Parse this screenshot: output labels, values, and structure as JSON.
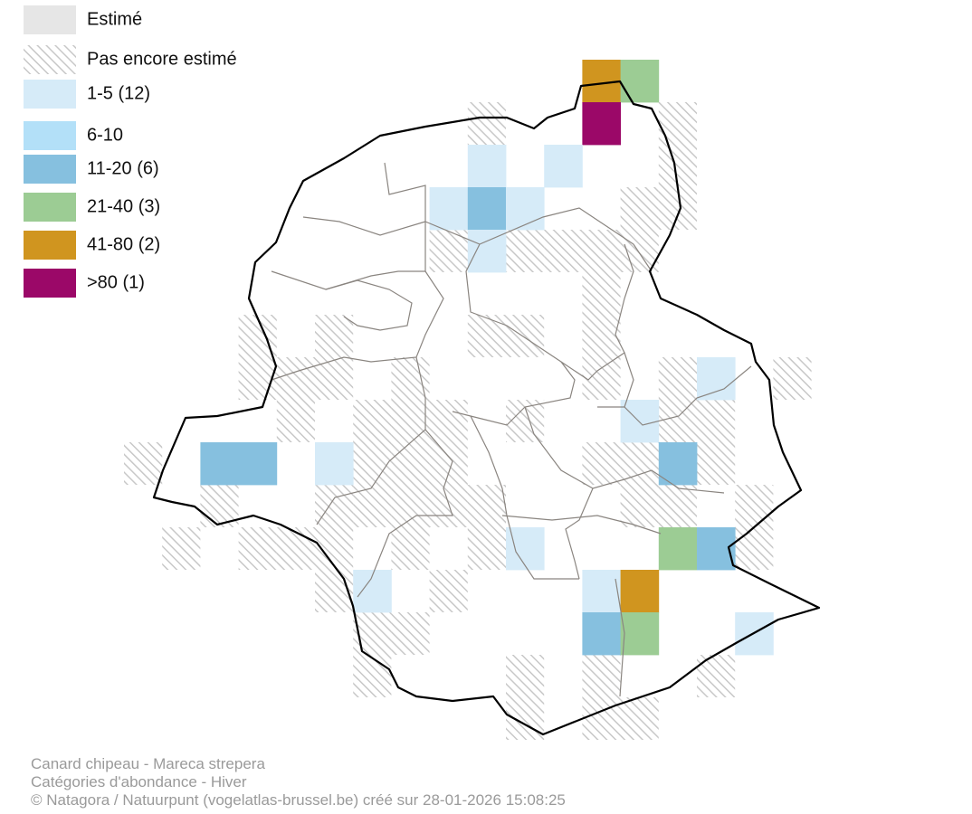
{
  "legend": {
    "items": [
      {
        "label": "Estimé",
        "color": "#e6e6e6"
      },
      {
        "label": "Pas encore estimé",
        "color": "#c8c8c8",
        "hatched": true
      },
      {
        "label": "1-5 (12)",
        "color": "#d6ebf8"
      },
      {
        "label": "6-10",
        "color": "#b3e0f8"
      },
      {
        "label": "11-20 (6)",
        "color": "#86c0df"
      },
      {
        "label": "21-40 (3)",
        "color": "#9ccc94"
      },
      {
        "label": "41-80 (2)",
        "color": "#d0951f"
      },
      {
        "label": ">80 (1)",
        "color": "#9b0868"
      }
    ]
  },
  "footer": {
    "lines": [
      "Canard chipeau - Mareca strepera",
      "Catégories d'abondance - Hiver",
      "© Natagora / Natuurpunt (vogelatlas-brussel.be) créé sur 28-01-2026 15:08:25"
    ]
  }
}
